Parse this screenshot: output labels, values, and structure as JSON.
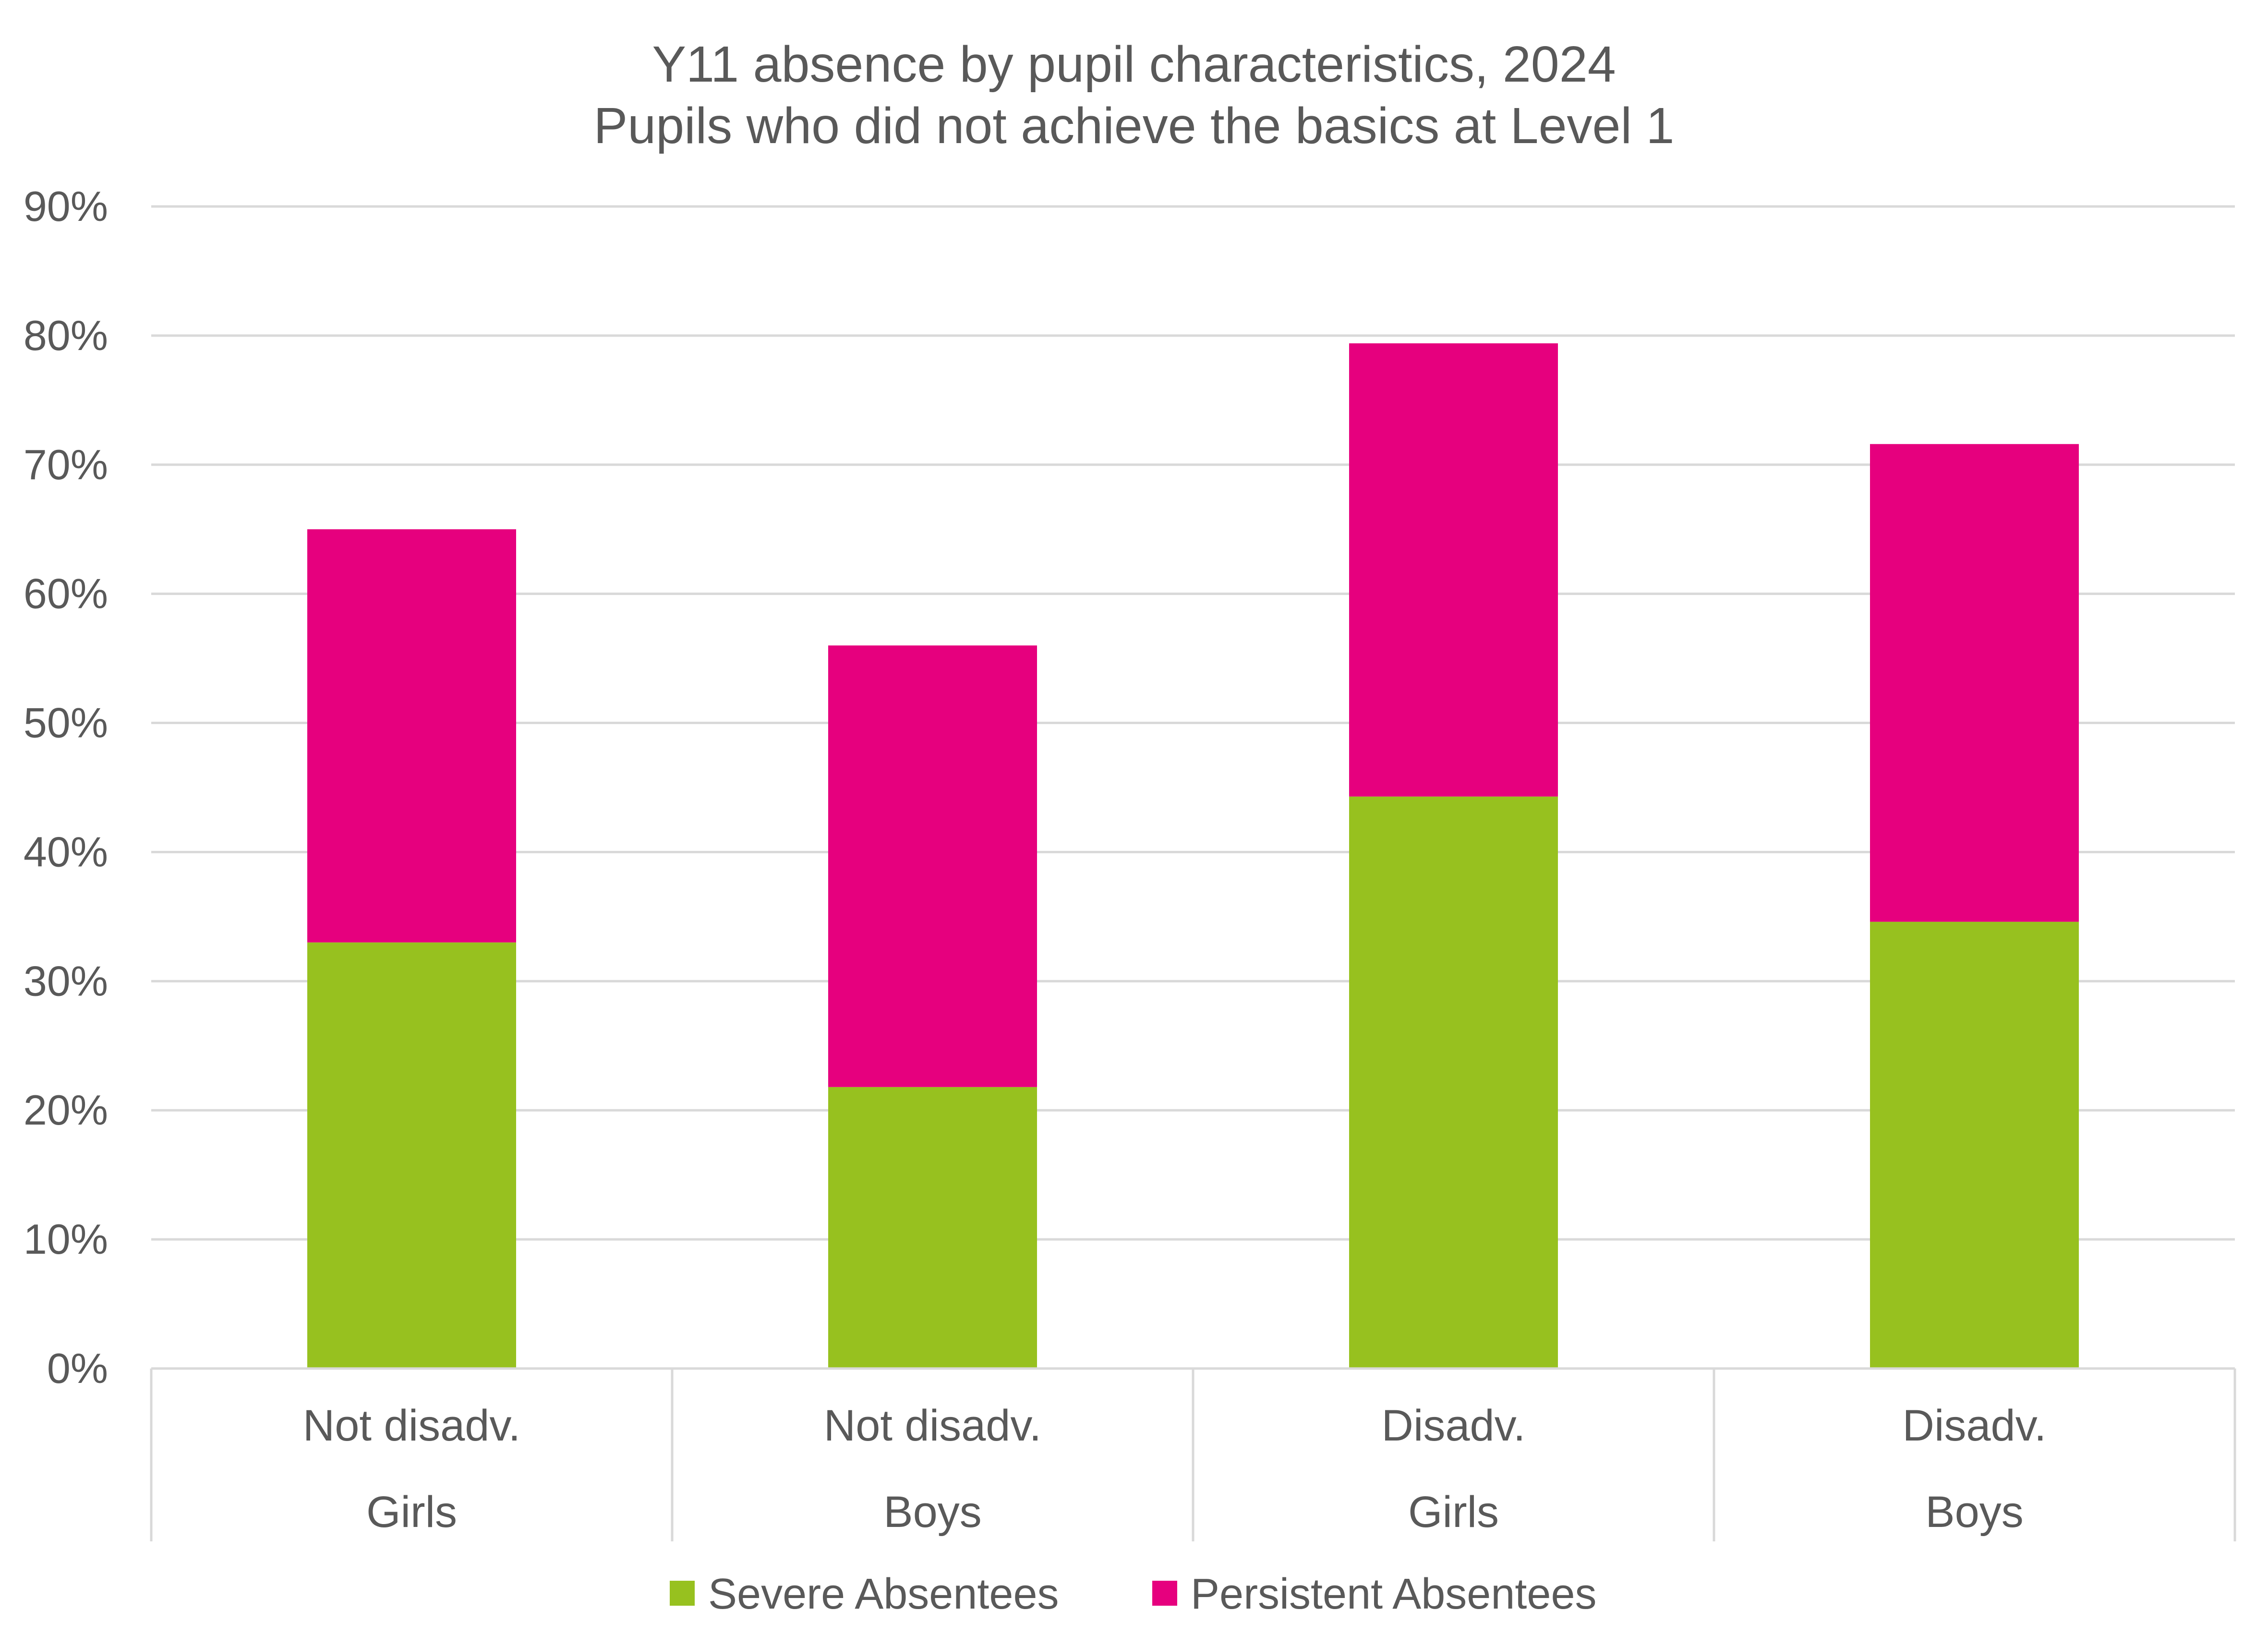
{
  "chart_data": {
    "type": "bar",
    "stacked": true,
    "title": "Y11 absence by pupil characteristics, 2024",
    "subtitle": "Pupils who did not achieve the basics at Level 1",
    "categories": [
      {
        "group": "Not disadv.",
        "sub": "Girls"
      },
      {
        "group": "Not disadv.",
        "sub": "Boys"
      },
      {
        "group": "Disadv.",
        "sub": "Girls"
      },
      {
        "group": "Disadv.",
        "sub": "Boys"
      }
    ],
    "series": [
      {
        "name": "Severe Absentees",
        "color": "#97c11f",
        "values": [
          33.0,
          21.8,
          44.3,
          34.6
        ]
      },
      {
        "name": "Persistent Absentees",
        "color": "#e6007e",
        "values": [
          32.0,
          34.2,
          35.1,
          37.0
        ]
      }
    ],
    "ylim": [
      0,
      90
    ],
    "yticks": [
      0,
      10,
      20,
      30,
      40,
      50,
      60,
      70,
      80,
      90
    ],
    "ytick_labels": [
      "0%",
      "10%",
      "20%",
      "30%",
      "40%",
      "50%",
      "60%",
      "70%",
      "80%",
      "90%"
    ],
    "grid": true,
    "legend": "bottom",
    "xlabel": "",
    "ylabel": ""
  }
}
